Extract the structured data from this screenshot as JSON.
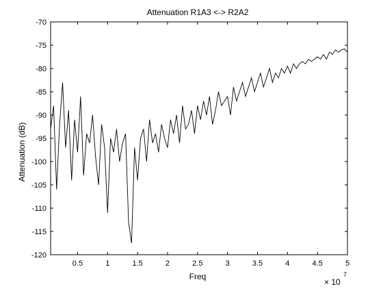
{
  "chart_data": {
    "type": "line",
    "title": "Attenuation R1A3 <-> R2A2",
    "xlabel": "Freq",
    "ylabel": "Attenuation (dB)",
    "x_exponent_label": "× 10",
    "x_exponent_power": "7",
    "x_scale_multiplier": 10000000,
    "xlim": [
      0.05,
      5
    ],
    "ylim": [
      -120,
      -70
    ],
    "grid": false,
    "legend": "none",
    "colors": {
      "line": "#000000",
      "axes": "#000000",
      "background": "#ffffff"
    },
    "x_ticks": [
      {
        "value": 0.5,
        "label": "0.5"
      },
      {
        "value": 1,
        "label": "1"
      },
      {
        "value": 1.5,
        "label": "1.5"
      },
      {
        "value": 2,
        "label": "2"
      },
      {
        "value": 2.5,
        "label": "2.5"
      },
      {
        "value": 3,
        "label": "3"
      },
      {
        "value": 3.5,
        "label": "3.5"
      },
      {
        "value": 4,
        "label": "4"
      },
      {
        "value": 4.5,
        "label": "4.5"
      },
      {
        "value": 5,
        "label": "5"
      }
    ],
    "y_ticks": [
      {
        "value": -70,
        "label": "-70"
      },
      {
        "value": -75,
        "label": "-75"
      },
      {
        "value": -80,
        "label": "-80"
      },
      {
        "value": -85,
        "label": "-85"
      },
      {
        "value": -90,
        "label": "-90"
      },
      {
        "value": -95,
        "label": "-95"
      },
      {
        "value": -100,
        "label": "-100"
      },
      {
        "value": -105,
        "label": "-105"
      },
      {
        "value": -110,
        "label": "-110"
      },
      {
        "value": -115,
        "label": "-115"
      },
      {
        "value": -120,
        "label": "-120"
      }
    ],
    "series": [
      {
        "x": [
          0.05,
          0.1,
          0.15,
          0.2,
          0.25,
          0.3,
          0.35,
          0.4,
          0.45,
          0.5,
          0.55,
          0.6,
          0.65,
          0.7,
          0.75,
          0.8,
          0.85,
          0.9,
          0.95,
          1.0,
          1.05,
          1.1,
          1.15,
          1.2,
          1.25,
          1.3,
          1.35,
          1.4,
          1.45,
          1.5,
          1.55,
          1.6,
          1.65,
          1.7,
          1.75,
          1.8,
          1.85,
          1.9,
          1.95,
          2.0,
          2.05,
          2.1,
          2.15,
          2.2,
          2.25,
          2.3,
          2.35,
          2.4,
          2.45,
          2.5,
          2.55,
          2.6,
          2.65,
          2.7,
          2.75,
          2.8,
          2.85,
          2.9,
          2.95,
          3.0,
          3.05,
          3.1,
          3.15,
          3.2,
          3.25,
          3.3,
          3.35,
          3.4,
          3.45,
          3.5,
          3.55,
          3.6,
          3.65,
          3.7,
          3.75,
          3.8,
          3.85,
          3.9,
          3.95,
          4.0,
          4.05,
          4.1,
          4.15,
          4.2,
          4.25,
          4.3,
          4.35,
          4.4,
          4.45,
          4.5,
          4.55,
          4.6,
          4.65,
          4.7,
          4.75,
          4.8,
          4.85,
          4.9,
          4.95,
          5.0
        ],
        "y": [
          -93,
          -88,
          -106,
          -92,
          -83,
          -97,
          -89,
          -104,
          -91,
          -98,
          -86,
          -103,
          -94,
          -96,
          -90,
          -99,
          -105,
          -92,
          -97,
          -111,
          -95,
          -98,
          -93,
          -100,
          -96,
          -94,
          -113,
          -117.5,
          -97,
          -104,
          -95,
          -93,
          -100,
          -91,
          -96,
          -94,
          -98,
          -92,
          -95,
          -97,
          -91,
          -94,
          -90,
          -96,
          -88,
          -93,
          -92,
          -89,
          -94,
          -88,
          -91,
          -87,
          -90,
          -86,
          -92,
          -89,
          -85,
          -88,
          -87,
          -86,
          -90,
          -84,
          -87,
          -85,
          -83,
          -86,
          -84,
          -82,
          -85,
          -83,
          -81,
          -84,
          -82,
          -80,
          -83,
          -81,
          -82,
          -80,
          -81,
          -79.5,
          -81,
          -79,
          -80,
          -79,
          -78.5,
          -79,
          -78,
          -78.5,
          -78,
          -77.5,
          -78,
          -77,
          -78,
          -76.5,
          -77,
          -76,
          -76.5,
          -76,
          -75.8,
          -76.5
        ]
      }
    ]
  }
}
